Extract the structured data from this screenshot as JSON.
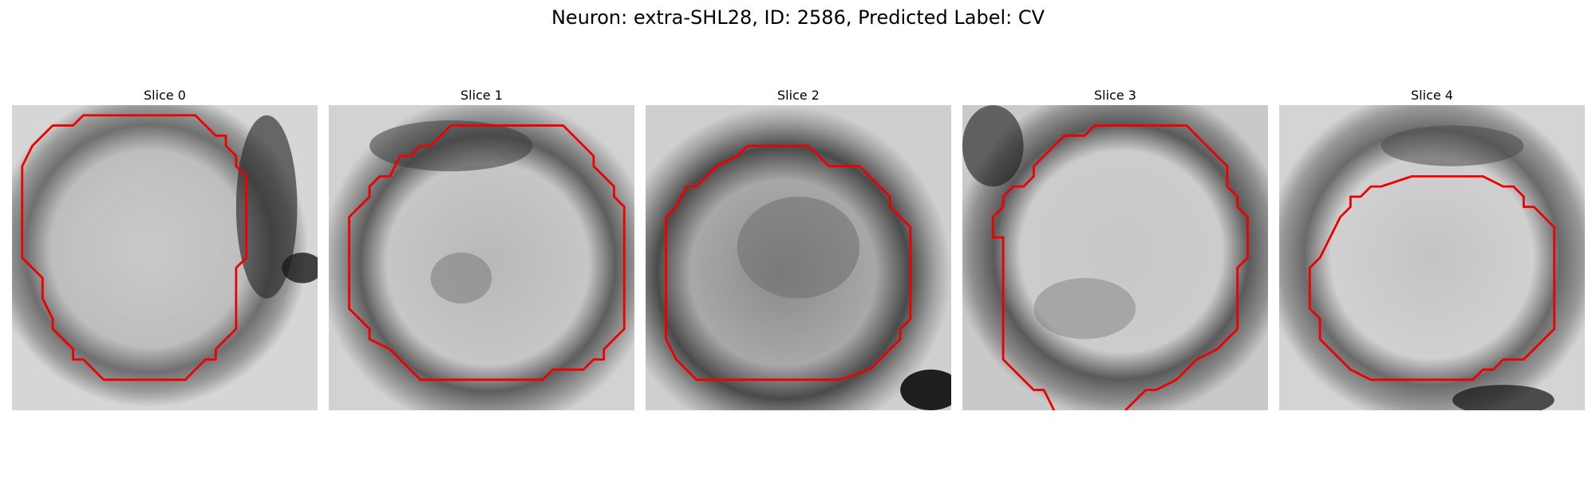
{
  "figure": {
    "title": "Neuron: extra-SHL28, ID: 2586, Predicted Label: CV"
  },
  "panels": [
    {
      "title": "Slice 0"
    },
    {
      "title": "Slice 1"
    },
    {
      "title": "Slice 2"
    },
    {
      "title": "Slice 3"
    },
    {
      "title": "Slice 4"
    }
  ],
  "colors": {
    "contour": "#ee0000",
    "background": "#ffffff"
  }
}
